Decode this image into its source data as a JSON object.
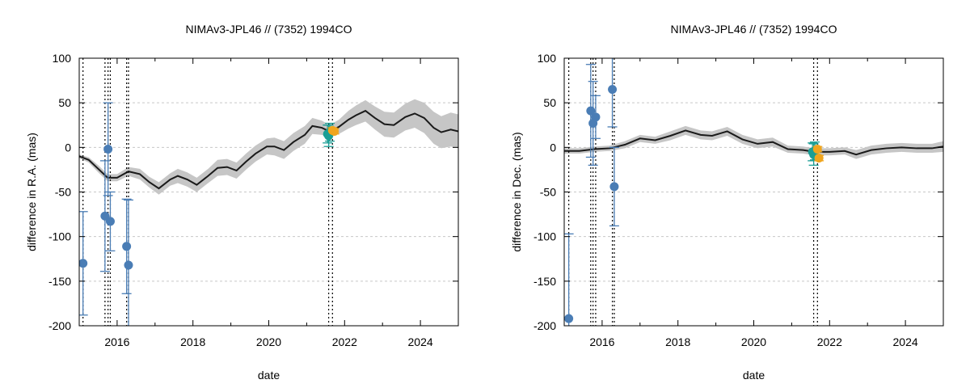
{
  "chart_data": [
    {
      "type": "scatter",
      "title": "NIMAv3-JPL46 // (7352) 1994CO",
      "xlabel": "date",
      "ylabel": "difference in R.A. (mas)",
      "xlim": [
        2015.0,
        2025.0
      ],
      "ylim": [
        -200,
        100
      ],
      "xticks": [
        2016,
        2018,
        2020,
        2022,
        2024
      ],
      "yticks": [
        100,
        50,
        0,
        -50,
        -100,
        -150,
        -200
      ],
      "grid": true,
      "model_curve": {
        "x": [
          2015.0,
          2015.25,
          2015.5,
          2015.75,
          2016.0,
          2016.3,
          2016.6,
          2016.85,
          2017.1,
          2017.4,
          2017.6,
          2017.85,
          2018.1,
          2018.4,
          2018.65,
          2018.9,
          2019.15,
          2019.4,
          2019.65,
          2019.95,
          2020.15,
          2020.4,
          2020.65,
          2020.95,
          2021.15,
          2021.4,
          2021.6,
          2021.85,
          2022.1,
          2022.3,
          2022.55,
          2022.8,
          2023.05,
          2023.3,
          2023.6,
          2023.85,
          2024.1,
          2024.35,
          2024.55,
          2024.8,
          2025.0
        ],
        "y": [
          -10,
          -14,
          -24,
          -34,
          -34,
          -27,
          -30,
          -39,
          -46,
          -36,
          -32,
          -36,
          -42,
          -32,
          -23,
          -22,
          -26,
          -16,
          -7,
          1,
          1,
          -3,
          6,
          14,
          24,
          22,
          18,
          23,
          31,
          36,
          41,
          33,
          26,
          25,
          34,
          38,
          33,
          22,
          17,
          20,
          18
        ],
        "band_halfwidth": [
          2,
          3,
          4,
          4,
          4,
          5,
          6,
          6,
          7,
          7,
          8,
          8,
          8,
          8,
          9,
          9,
          9,
          9,
          9,
          9,
          10,
          10,
          10,
          10,
          9,
          8,
          7,
          8,
          10,
          11,
          12,
          13,
          14,
          14,
          15,
          16,
          17,
          18,
          18,
          19,
          19
        ]
      },
      "series": [
        {
          "name": "blue observations",
          "color": "#4a7db5",
          "points": [
            {
              "x": 2015.1,
              "y": -130,
              "err": 58
            },
            {
              "x": 2015.68,
              "y": -77,
              "err": 62
            },
            {
              "x": 2015.76,
              "y": -2,
              "err": 52
            },
            {
              "x": 2015.82,
              "y": -83,
              "err": 33
            },
            {
              "x": 2016.25,
              "y": -111,
              "err": 53
            },
            {
              "x": 2016.3,
              "y": -132,
              "err": 73
            }
          ]
        },
        {
          "name": "teal observations",
          "color": "#1a9e95",
          "points": [
            {
              "x": 2021.55,
              "y": 15,
              "err": 10
            },
            {
              "x": 2021.58,
              "y": 13,
              "err": 12
            },
            {
              "x": 2021.61,
              "y": 17,
              "err": 10
            }
          ]
        },
        {
          "name": "orange observations",
          "color": "#f0a51e",
          "points": [
            {
              "x": 2021.68,
              "y": 19,
              "err": 3
            },
            {
              "x": 2021.73,
              "y": 18,
              "err": 3
            }
          ]
        }
      ],
      "vlines": [
        2015.1,
        2015.68,
        2015.76,
        2015.82,
        2016.25,
        2016.3,
        2021.58,
        2021.68
      ]
    },
    {
      "type": "scatter",
      "title": "NIMAv3-JPL46 // (7352) 1994CO",
      "xlabel": "date",
      "ylabel": "difference in Dec. (mas)",
      "xlim": [
        2015.0,
        2025.0
      ],
      "ylim": [
        -200,
        100
      ],
      "xticks": [
        2016,
        2018,
        2020,
        2022,
        2024
      ],
      "yticks": [
        100,
        50,
        0,
        -50,
        -100,
        -150,
        -200
      ],
      "grid": true,
      "model_curve": {
        "x": [
          2015.0,
          2015.4,
          2015.8,
          2016.2,
          2016.6,
          2017.0,
          2017.4,
          2017.8,
          2018.2,
          2018.6,
          2018.9,
          2019.3,
          2019.7,
          2020.1,
          2020.5,
          2020.9,
          2021.3,
          2021.6,
          2022.0,
          2022.4,
          2022.7,
          2023.1,
          2023.5,
          2023.9,
          2024.3,
          2024.7,
          2025.0
        ],
        "y": [
          -4,
          -4,
          -2,
          -1,
          3,
          10,
          8,
          13,
          19,
          14,
          13,
          18,
          9,
          4,
          6,
          -2,
          -3,
          -5,
          -5,
          -4,
          -8,
          -3,
          -1,
          0,
          -1,
          -1,
          1
        ],
        "band_halfwidth": [
          3,
          3,
          3,
          3,
          4,
          4,
          4,
          5,
          5,
          5,
          5,
          5,
          5,
          5,
          5,
          4,
          4,
          4,
          4,
          4,
          5,
          5,
          5,
          5,
          5,
          5,
          6
        ]
      },
      "series": [
        {
          "name": "blue observations",
          "color": "#4a7db5",
          "points": [
            {
              "x": 2015.12,
              "y": -192,
              "err": 95
            },
            {
              "x": 2015.7,
              "y": 41,
              "err": 52
            },
            {
              "x": 2015.76,
              "y": 27,
              "err": 47
            },
            {
              "x": 2015.83,
              "y": 34,
              "err": 24
            },
            {
              "x": 2016.27,
              "y": 65,
              "err": 42
            },
            {
              "x": 2016.32,
              "y": -44,
              "err": 44
            }
          ]
        },
        {
          "name": "teal observations",
          "color": "#1a9e95",
          "points": [
            {
              "x": 2021.55,
              "y": -5,
              "err": 10
            },
            {
              "x": 2021.58,
              "y": -8,
              "err": 12
            },
            {
              "x": 2021.61,
              "y": -4,
              "err": 10
            }
          ]
        },
        {
          "name": "orange observations",
          "color": "#f0a51e",
          "points": [
            {
              "x": 2021.68,
              "y": -2,
              "err": 3
            },
            {
              "x": 2021.72,
              "y": -12,
              "err": 3
            }
          ]
        }
      ],
      "vlines": [
        2015.12,
        2015.7,
        2015.76,
        2015.83,
        2016.27,
        2016.32,
        2021.58,
        2021.68
      ]
    }
  ]
}
